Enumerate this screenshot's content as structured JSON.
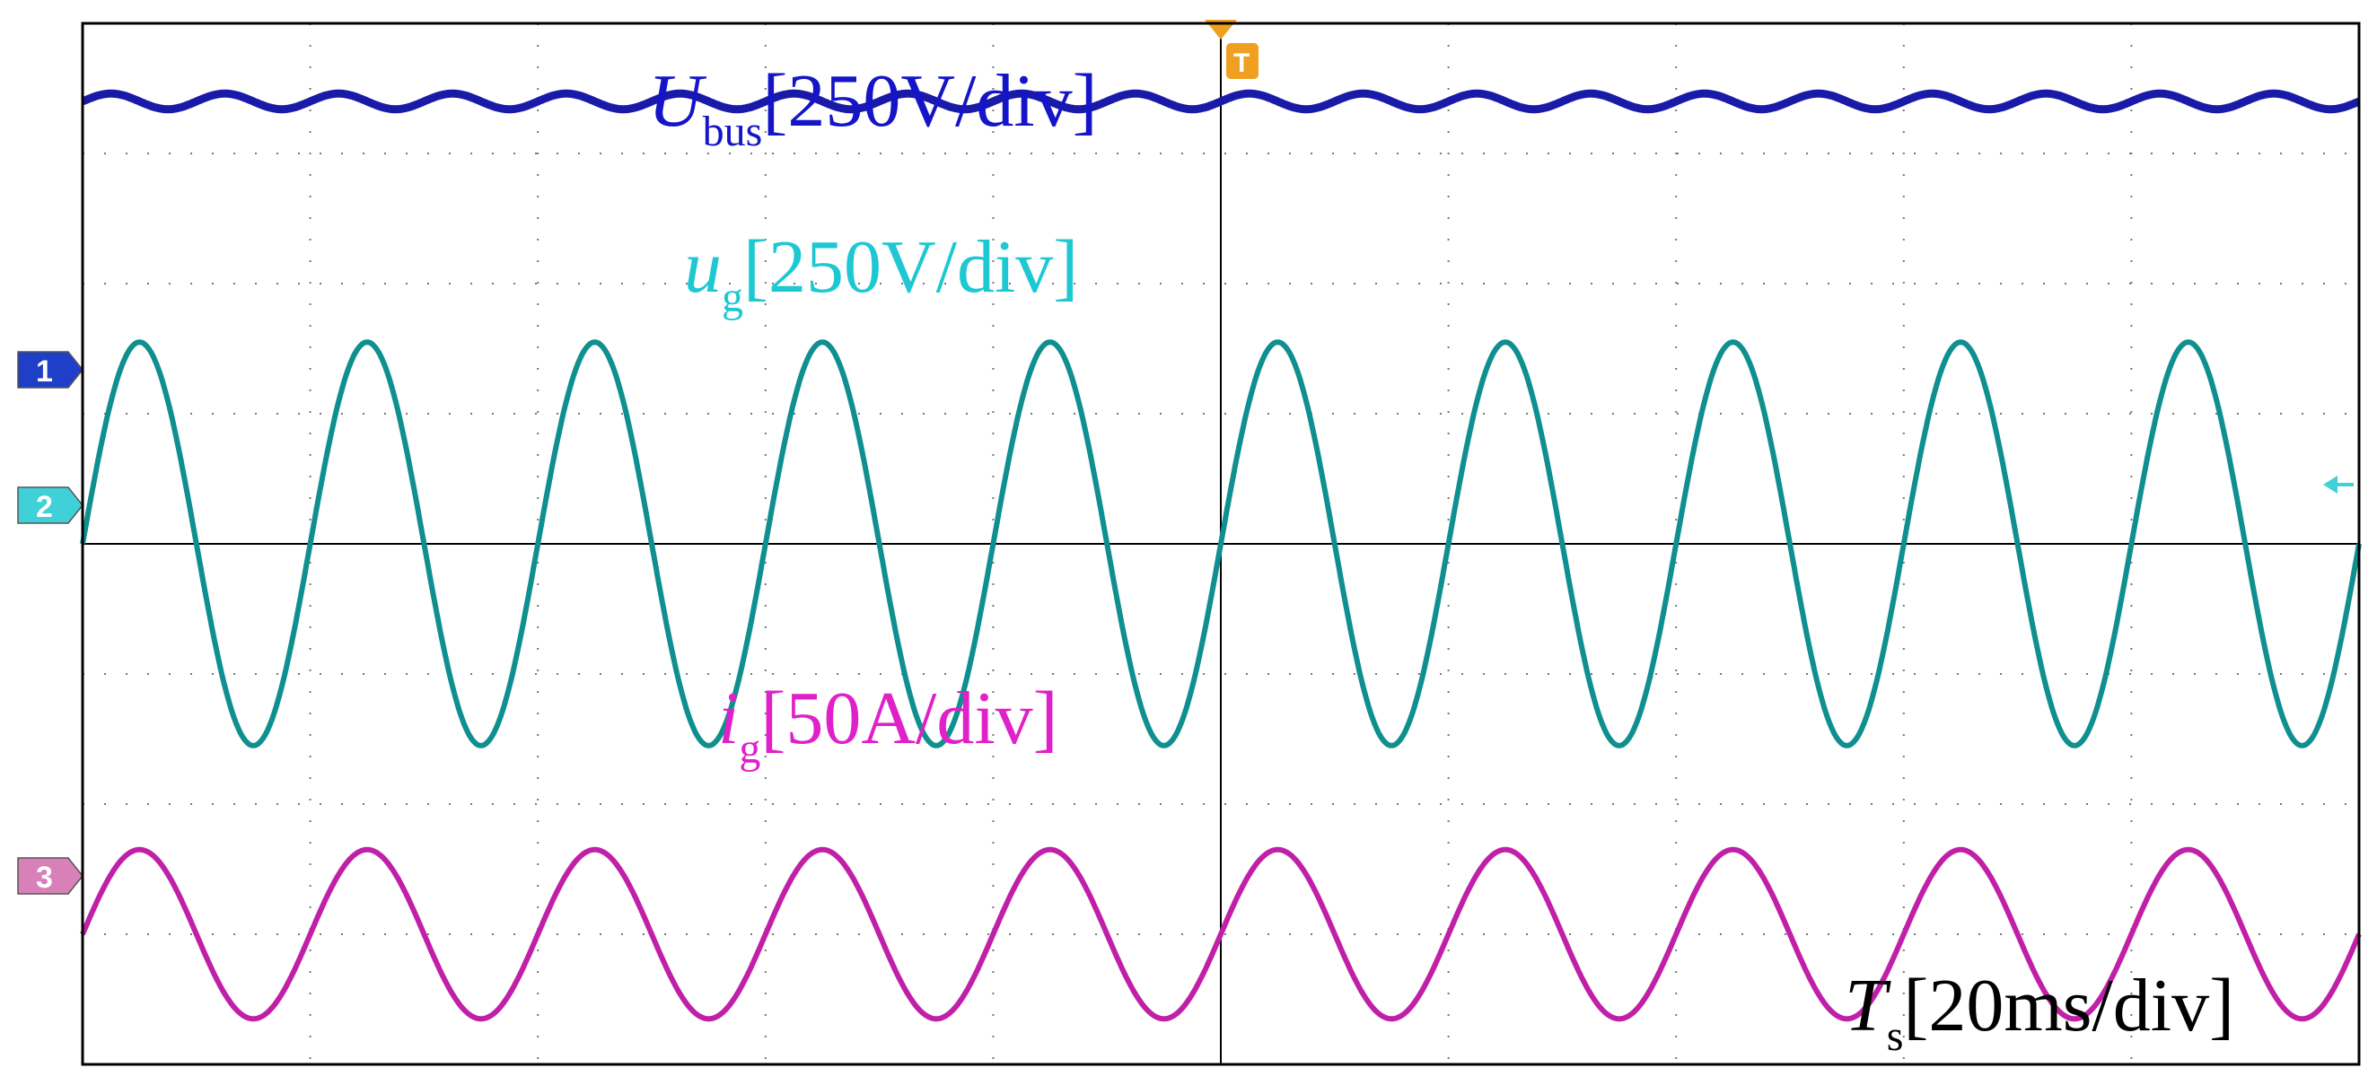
{
  "chart_data": {
    "type": "line",
    "grid": true,
    "grid_divisions": {
      "x": 10,
      "y": 8
    },
    "time_scale": {
      "symbol": "T",
      "subscript": "s",
      "scale_text": "[20ms/div]"
    },
    "trigger_marker": "T",
    "x_unit": "div",
    "x_range": [
      0,
      10
    ],
    "series": [
      {
        "name": "U_bus",
        "symbol": "U",
        "subscript": "bus",
        "scale_text": "[250V/div]",
        "channel": "1",
        "color": "#1a1aa8",
        "label_color": "#1414c8",
        "marker_color": "#1f3fc8",
        "waveform": "dc_with_ripple",
        "level_div": 3.4,
        "ripple_pp_div": 0.12,
        "ripple_period_div": 0.5
      },
      {
        "name": "u_g",
        "symbol": "u",
        "subscript": "g",
        "scale_text": "[250V/div]",
        "channel": "2",
        "color": "#0f8f8f",
        "label_color": "#1ec8d2",
        "marker_color": "#40d0d8",
        "waveform": "sine",
        "amplitude_div": 1.55,
        "period_div": 1.0,
        "phase_deg": 0
      },
      {
        "name": "i_g",
        "symbol": "i",
        "subscript": "g",
        "scale_text": "[50A/div]",
        "channel": "3",
        "color": "#c020a8",
        "label_color": "#e020c8",
        "marker_color": "#d880b8",
        "waveform": "sine",
        "amplitude_div": 0.65,
        "period_div": 1.0,
        "phase_deg": 0
      }
    ]
  }
}
